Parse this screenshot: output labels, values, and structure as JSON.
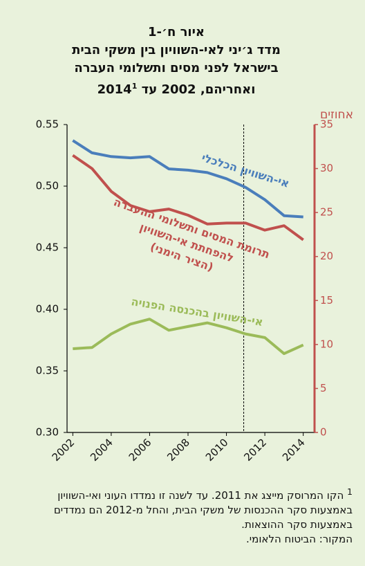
{
  "chart_data": {
    "type": "line",
    "title_lines": [
      "איור ח׳-1",
      "מדד ג׳יני לאי-השוויון בין משקי הבית",
      "בישראל לפני מסים ותשלומי העברה",
      "ואחריהם, 2002 עד 2014"
    ],
    "footnote_marker": "1",
    "y2_label": "אחוזים",
    "x": [
      2002,
      2003,
      2004,
      2005,
      2006,
      2007,
      2008,
      2009,
      2010,
      2011,
      2012,
      2013,
      2014
    ],
    "series": [
      {
        "name": "אי-השוויון הכלכלי",
        "color": "#4a7ebb",
        "values": [
          0.537,
          0.527,
          0.524,
          0.523,
          0.524,
          0.514,
          0.513,
          0.511,
          0.506,
          0.499,
          0.489,
          0.476,
          0.475
        ]
      },
      {
        "name": "תרומת המסים ותשלומי ההעברה להפחתת אי-השוויון",
        "color": "#c0504d",
        "axis": "y2",
        "note": "(הציר הימני)",
        "values": [
          31.5,
          30.0,
          27.4,
          25.8,
          25.1,
          25.4,
          24.7,
          23.7,
          23.8,
          23.8,
          23.0,
          23.5,
          21.9
        ]
      },
      {
        "name": "אי-השוויון בהכנסה הפנויה",
        "color": "#9bbb59",
        "values": [
          0.368,
          0.369,
          0.38,
          0.388,
          0.392,
          0.383,
          0.386,
          0.389,
          0.385,
          0.38,
          0.377,
          0.364,
          0.371
        ]
      }
    ],
    "xlim": [
      2001.7,
      2014.3
    ],
    "xticks": [
      2002,
      2004,
      2006,
      2008,
      2010,
      2012,
      2014
    ],
    "ylim": [
      0.3,
      0.55
    ],
    "yticks": [
      {
        "value": 0.3,
        "label": "0.30"
      },
      0.35,
      {
        "value": 0.4,
        "label": "0.40"
      },
      0.45,
      {
        "value": 0.5,
        "label": "0.50"
      },
      0.55
    ],
    "y2lim": [
      0,
      35
    ],
    "y2ticks": [
      0,
      5,
      10,
      15,
      20,
      25,
      30,
      35
    ],
    "y2_color": "#c0504d",
    "forecast_line_x": 2010.9,
    "footnote": "הקו המרוסק מייצג את 2011. עד לשנה זו נמדדו העוני ואי-השוויון באמצעות סקר ההכנסות של משקי הבית, והחל מ-2012 הם נמדדים באמצעות סקר ההוצאות.",
    "source": "המקור: הביטוח הלאומי."
  }
}
